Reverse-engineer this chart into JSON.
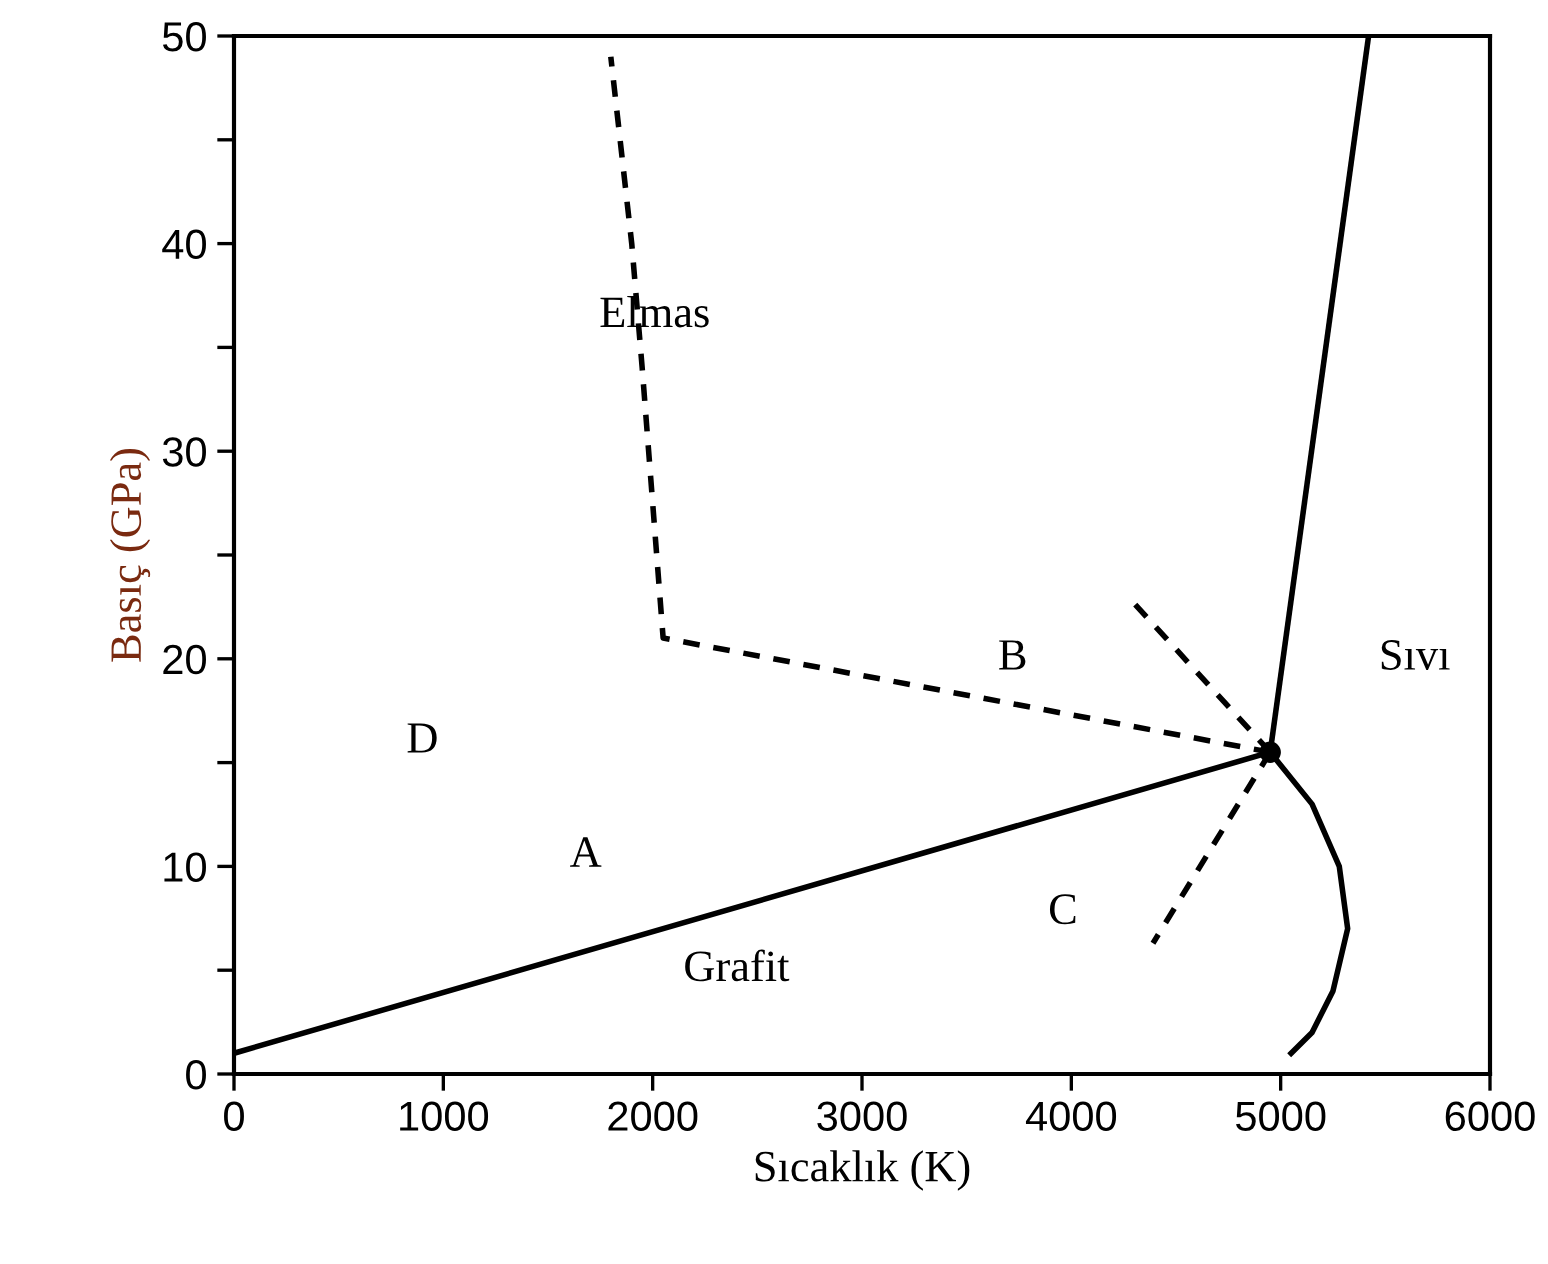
{
  "chart_data": {
    "type": "line",
    "xlabel": "Sıcaklık (K)",
    "ylabel": "Basıç (GPa)",
    "xlim": [
      0,
      6000
    ],
    "ylim": [
      0,
      50
    ],
    "xticks": [
      0,
      1000,
      2000,
      3000,
      4000,
      5000,
      6000
    ],
    "yticks": [
      0,
      {
        "value": 5,
        "label": null
      },
      10,
      {
        "value": 15,
        "label": null
      },
      20,
      {
        "value": 25,
        "label": null
      },
      30,
      {
        "value": 35,
        "label": null
      },
      40,
      {
        "value": 45,
        "label": null
      },
      50
    ],
    "grid": false,
    "legend": false,
    "marker": "none",
    "series": [
      {
        "color": "#000000",
        "line_style": "solid",
        "x": [
          0,
          4950
        ],
        "values": [
          1,
          15.5
        ]
      },
      {
        "color": "#000000",
        "line_style": "solid",
        "x": [
          4950,
          5420
        ],
        "values": [
          15.5,
          50
        ]
      },
      {
        "color": "#000000",
        "line_style": "solid",
        "x": [
          4950,
          5150,
          5280,
          5320,
          5250,
          5150,
          5050
        ],
        "values": [
          15.5,
          13,
          10,
          7,
          4,
          2,
          1
        ]
      },
      {
        "color": "#000000",
        "line_style": "dashed",
        "x": [
          4950,
          2050,
          1950,
          1900,
          1800
        ],
        "values": [
          15.5,
          21,
          34,
          40,
          49
        ]
      },
      {
        "color": "#000000",
        "line_style": "dashed",
        "x": [
          4950,
          4270
        ],
        "values": [
          15.5,
          23
        ]
      },
      {
        "color": "#000000",
        "line_style": "dashed",
        "x": [
          4950,
          4390
        ],
        "values": [
          15.5,
          6.3
        ]
      },
      {
        "type": "scatter",
        "color": "#000000",
        "marker": "circle",
        "x": [
          4950
        ],
        "values": [
          15.5
        ]
      }
    ],
    "annotations": [
      "Elmas",
      "B",
      "Sıvı",
      "D",
      "A",
      "C",
      "Grafit"
    ]
  }
}
